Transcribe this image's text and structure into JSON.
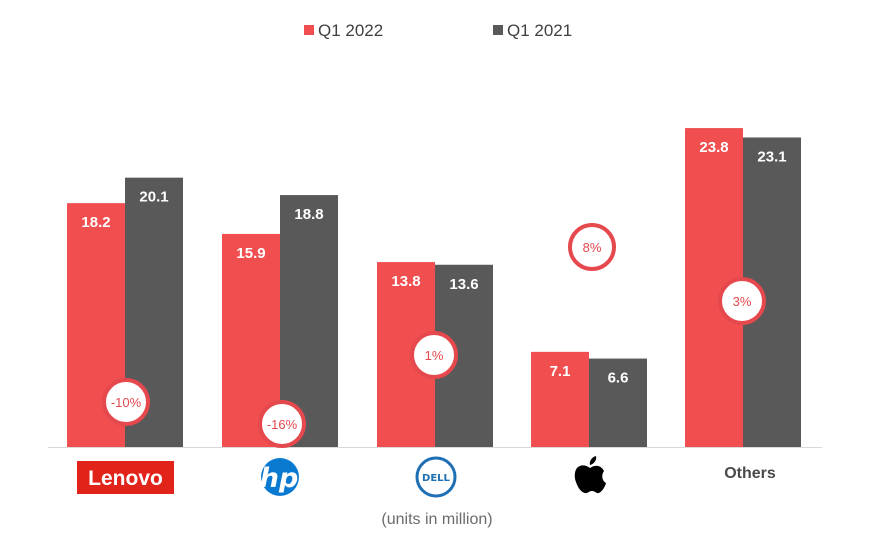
{
  "chart_data": {
    "type": "bar",
    "categories": [
      "Lenovo",
      "HP",
      "Dell",
      "Apple",
      "Others"
    ],
    "series": [
      {
        "name": "Q1 2022",
        "values": [
          18.2,
          15.9,
          13.8,
          7.1,
          23.8
        ]
      },
      {
        "name": "Q1 2021",
        "values": [
          20.1,
          18.8,
          13.6,
          6.6,
          23.1
        ]
      }
    ],
    "growth_labels": [
      "-10%",
      "-16%",
      "1%",
      "8%",
      "3%"
    ],
    "ylim": [
      0,
      25
    ],
    "legend_position": "top-center",
    "grid": false,
    "caption": "(units in million)",
    "category_logos": [
      "lenovo-logo",
      "hp-logo",
      "dell-logo",
      "apple-logo",
      "others-text"
    ],
    "colors": {
      "q1_2022": "#f04e4f",
      "q1_2021": "#595959",
      "growth_ring": "#e5484d",
      "axis": "#d9d9d9"
    }
  }
}
